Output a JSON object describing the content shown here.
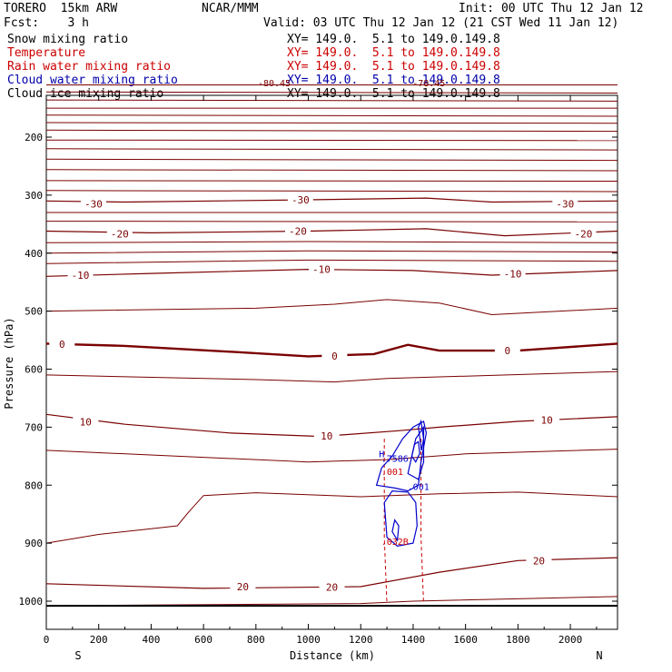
{
  "header": {
    "model": "TORERO  15km ARW",
    "org": "NCAR/MMM",
    "init": "Init: 00 UTC Thu 12 Jan 12",
    "fcst": "Fcst:    3 h",
    "valid": "Valid: 03 UTC Thu 12 Jan 12 (21 CST Wed 11 Jan 12)"
  },
  "legend": [
    {
      "label": "Snow mixing ratio",
      "xy": "XY= 149.0.  5.1 to 149.0.149.8",
      "label_color": "#000000",
      "xy_color": "#000000"
    },
    {
      "label": "Temperature",
      "xy": "XY= 149.0.  5.1 to 149.0.149.8",
      "label_color": "#cc0000",
      "xy_color": "#cc0000"
    },
    {
      "label": "Rain water mixing ratio",
      "xy": "XY= 149.0.  5.1 to 149.0.149.8",
      "label_color": "#cc0000",
      "xy_color": "#cc0000"
    },
    {
      "label": "Cloud water mixing ratio",
      "xy": "XY= 149.0.  5.1 to 149.0.149.8",
      "label_color": "#0000aa",
      "xy_color": "#0000aa"
    },
    {
      "label": "Cloud ice mixing ratio",
      "xy": "XY= 149.0.  5.1 to 149.0.149.8",
      "label_color": "#000000",
      "xy_color": "#000000"
    }
  ],
  "chart_data": {
    "type": "contour cross-section",
    "xlabel": "Distance (km)",
    "ylabel": "Pressure (hPa)",
    "xlim": [
      0,
      2180
    ],
    "ylim": [
      1050,
      100
    ],
    "x_ticks": [
      0,
      200,
      400,
      600,
      800,
      1000,
      1200,
      1400,
      1600,
      1800,
      2000
    ],
    "y_ticks": [
      200,
      300,
      400,
      500,
      600,
      700,
      800,
      900,
      1000
    ],
    "x_end_labels": {
      "left": "S",
      "right": "N"
    },
    "temperature_contours": [
      {
        "label": "-30",
        "points": [
          [
            0,
            310
          ],
          [
            300,
            312
          ],
          [
            1000,
            308
          ],
          [
            1450,
            305
          ],
          [
            1700,
            312
          ],
          [
            2180,
            310
          ]
        ],
        "label_at": [
          [
            180,
            315
          ],
          [
            970,
            308
          ],
          [
            1980,
            315
          ]
        ]
      },
      {
        "label": "-20",
        "points": [
          [
            0,
            362
          ],
          [
            400,
            365
          ],
          [
            1000,
            362
          ],
          [
            1450,
            358
          ],
          [
            1750,
            370
          ],
          [
            2180,
            362
          ]
        ],
        "label_at": [
          [
            280,
            367
          ],
          [
            960,
            362
          ],
          [
            2050,
            367
          ]
        ]
      },
      {
        "label": "-10",
        "points": [
          [
            0,
            440
          ],
          [
            400,
            435
          ],
          [
            1000,
            428
          ],
          [
            1400,
            430
          ],
          [
            1700,
            438
          ],
          [
            2180,
            430
          ]
        ],
        "label_at": [
          [
            130,
            438
          ],
          [
            1050,
            428
          ],
          [
            1780,
            436
          ]
        ]
      },
      {
        "label": "0",
        "points": [
          [
            0,
            556
          ],
          [
            300,
            560
          ],
          [
            700,
            570
          ],
          [
            1000,
            578
          ],
          [
            1250,
            574
          ],
          [
            1380,
            558
          ],
          [
            1500,
            568
          ],
          [
            1800,
            568
          ],
          [
            2180,
            556
          ]
        ],
        "label_at": [
          [
            60,
            557
          ],
          [
            1100,
            577
          ],
          [
            1760,
            568
          ]
        ]
      },
      {
        "label": "10",
        "points": [
          [
            0,
            678
          ],
          [
            300,
            695
          ],
          [
            700,
            710
          ],
          [
            1050,
            716
          ],
          [
            1350,
            706
          ],
          [
            1500,
            700
          ],
          [
            1800,
            690
          ],
          [
            2180,
            682
          ]
        ],
        "label_at": [
          [
            150,
            691
          ],
          [
            1070,
            715
          ],
          [
            1910,
            688
          ]
        ]
      },
      {
        "label": "20",
        "points": [
          [
            0,
            970
          ],
          [
            600,
            978
          ],
          [
            1200,
            975
          ],
          [
            1500,
            950
          ],
          [
            1800,
            930
          ],
          [
            2180,
            925
          ]
        ],
        "label_at": [
          [
            750,
            975
          ],
          [
            1090,
            976
          ],
          [
            1880,
            930
          ]
        ]
      }
    ],
    "temperature_levels_unlabeled": [
      [
        [
          0,
          110
        ],
        [
          2180,
          110
        ]
      ],
      [
        [
          0,
          122
        ],
        [
          2180,
          124
        ]
      ],
      [
        [
          0,
          136
        ],
        [
          2180,
          138
        ]
      ],
      [
        [
          0,
          150
        ],
        [
          2180,
          150
        ]
      ],
      [
        [
          0,
          162
        ],
        [
          2180,
          164
        ]
      ],
      [
        [
          0,
          175
        ],
        [
          2180,
          176
        ]
      ],
      [
        [
          0,
          188
        ],
        [
          2180,
          190
        ]
      ],
      [
        [
          0,
          205
        ],
        [
          2180,
          206
        ]
      ],
      [
        [
          0,
          220
        ],
        [
          2180,
          222
        ]
      ],
      [
        [
          0,
          238
        ],
        [
          2180,
          240
        ]
      ],
      [
        [
          0,
          256
        ],
        [
          2180,
          258
        ]
      ],
      [
        [
          0,
          275
        ],
        [
          2180,
          276
        ]
      ],
      [
        [
          0,
          292
        ],
        [
          2180,
          294
        ]
      ],
      [
        [
          0,
          330
        ],
        [
          2180,
          330
        ]
      ],
      [
        [
          0,
          345
        ],
        [
          2180,
          346
        ]
      ],
      [
        [
          0,
          382
        ],
        [
          1000,
          380
        ],
        [
          2180,
          382
        ]
      ],
      [
        [
          0,
          400
        ],
        [
          1000,
          396
        ],
        [
          2180,
          398
        ]
      ],
      [
        [
          0,
          418
        ],
        [
          1000,
          412
        ],
        [
          2180,
          414
        ]
      ],
      [
        [
          0,
          500
        ],
        [
          800,
          495
        ],
        [
          1100,
          488
        ],
        [
          1300,
          480
        ],
        [
          1500,
          486
        ],
        [
          1700,
          506
        ],
        [
          2180,
          495
        ]
      ],
      [
        [
          0,
          610
        ],
        [
          800,
          618
        ],
        [
          1100,
          622
        ],
        [
          1300,
          616
        ],
        [
          1600,
          612
        ],
        [
          2180,
          604
        ]
      ],
      [
        [
          0,
          740
        ],
        [
          600,
          752
        ],
        [
          1000,
          760
        ],
        [
          1300,
          756
        ],
        [
          1600,
          746
        ],
        [
          2180,
          738
        ]
      ],
      [
        [
          0,
          900
        ],
        [
          200,
          885
        ],
        [
          400,
          875
        ],
        [
          500,
          870
        ],
        [
          540,
          848
        ],
        [
          600,
          818
        ],
        [
          800,
          813
        ],
        [
          1200,
          820
        ],
        [
          1500,
          815
        ],
        [
          1800,
          812
        ],
        [
          2180,
          820
        ]
      ],
      [
        [
          0,
          1008
        ],
        [
          1200,
          1004
        ],
        [
          1400,
          1000
        ],
        [
          1800,
          996
        ],
        [
          2180,
          992
        ]
      ]
    ],
    "freezing_level_label": "0",
    "top_labels": [
      "-80.45",
      "-78.45"
    ],
    "cloud_water_labels": [
      {
        "text": ".7586",
        "x": 1330,
        "p": 760
      },
      {
        "text": ".001",
        "x": 1420,
        "p": 808
      },
      {
        "text": "H",
        "x": 1280,
        "p": 752
      }
    ],
    "rain_water_labels": [
      {
        "text": ".032B",
        "x": 1330,
        "p": 903
      },
      {
        "text": ".001",
        "x": 1320,
        "p": 782
      }
    ],
    "colors": {
      "temperature": "#7a0000",
      "cloud_water": "#0000cc",
      "rain": "#cc0000",
      "ground": "#000000"
    },
    "grid": false
  }
}
